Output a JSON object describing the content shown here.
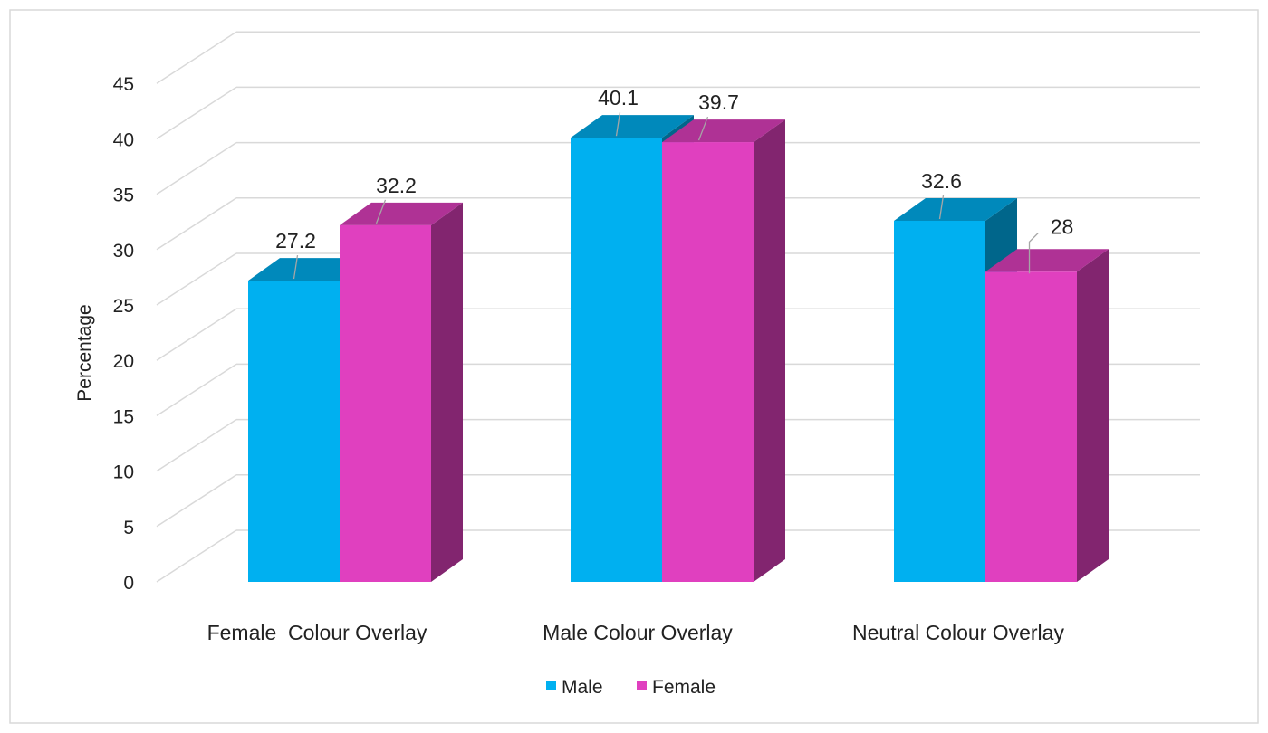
{
  "chart_data": {
    "type": "bar",
    "variant": "3d-clustered-column",
    "ylabel": "Percentage",
    "xlabel": "",
    "ylim": [
      0,
      45
    ],
    "yticks": [
      0,
      5,
      10,
      15,
      20,
      25,
      30,
      35,
      40,
      45
    ],
    "grid": true,
    "legend_position": "bottom",
    "categories": [
      "Female  Colour Overlay",
      "Male Colour Overlay",
      "Neutral Colour Overlay"
    ],
    "series": [
      {
        "name": "Male",
        "color": "#00b0f0",
        "values": [
          27.2,
          40.1,
          32.6
        ]
      },
      {
        "name": "Female",
        "color": "#e040bf",
        "values": [
          32.2,
          39.7,
          28
        ]
      }
    ]
  }
}
